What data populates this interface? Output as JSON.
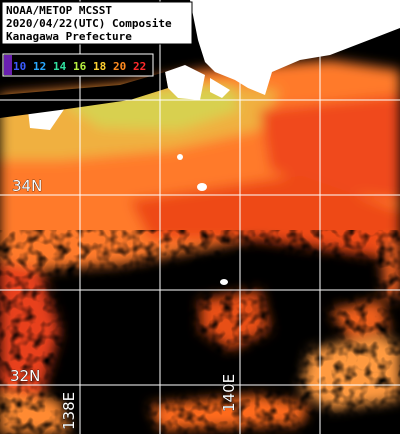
{
  "header": {
    "lines": [
      "NOAA/METOP MCSST",
      "2020/04/22(UTC) Composite",
      "Kanagawa Prefecture"
    ]
  },
  "legend": {
    "items": [
      {
        "label": "10",
        "color": "#3a5cff"
      },
      {
        "label": "12",
        "color": "#2aa8ff"
      },
      {
        "label": "14",
        "color": "#30e0a0"
      },
      {
        "label": "16",
        "color": "#b8f040"
      },
      {
        "label": "18",
        "color": "#ffd030"
      },
      {
        "label": "20",
        "color": "#ff8a20"
      },
      {
        "label": "22",
        "color": "#ff2a2a"
      }
    ]
  },
  "grid_labels": {
    "lat": [
      "34N",
      "32N"
    ],
    "lon": [
      "138E",
      "140E"
    ]
  }
}
